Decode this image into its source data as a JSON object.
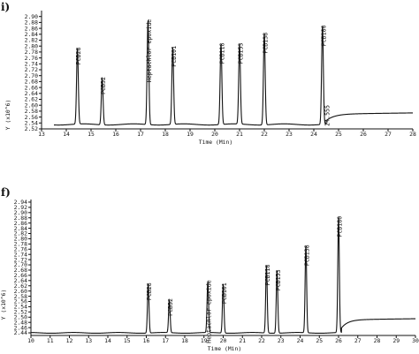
{
  "chart_data": [
    {
      "type": "line",
      "panel_label": "i)",
      "xlabel": "Time (Min)",
      "ylabel": "Y (x10^6)",
      "xlim": [
        13,
        28
      ],
      "ylim": [
        2.52,
        2.92
      ],
      "x_ticks": [
        "13",
        "14",
        "15",
        "16",
        "17",
        "18",
        "19",
        "20",
        "21",
        "22",
        "23",
        "24",
        "25",
        "26",
        "27",
        "28"
      ],
      "y_ticks": [
        "2.52",
        "2.54",
        "2.56",
        "2.58",
        "2.60",
        "2.62",
        "2.64",
        "2.66",
        "2.68",
        "2.70",
        "2.72",
        "2.74",
        "2.76",
        "2.78",
        "2.80",
        "2.82",
        "2.84",
        "2.86",
        "2.88",
        "2.90"
      ],
      "baseline": 2.535,
      "peaks": [
        {
          "name": "PCB28",
          "x": 14.45,
          "y": 2.79
        },
        {
          "name": "PCB52",
          "x": 15.45,
          "y": 2.69
        },
        {
          "name": "Heptachlor epoxide",
          "x": 17.3,
          "y": 2.885
        },
        {
          "name": "PCB101",
          "x": 18.3,
          "y": 2.795
        },
        {
          "name": "PCB118",
          "x": 20.25,
          "y": 2.805
        },
        {
          "name": "PCB153",
          "x": 21.0,
          "y": 2.805
        },
        {
          "name": "PCB138",
          "x": 22.0,
          "y": 2.84
        },
        {
          "name": "PCB180",
          "x": 24.35,
          "y": 2.865
        }
      ],
      "annotations": [
        {
          "text": "24.555",
          "x": 24.555,
          "y": 2.565
        }
      ]
    },
    {
      "type": "line",
      "panel_label": "f)",
      "xlabel": "Time (Min)",
      "ylabel": "Y (x10^6)",
      "xlim": [
        10,
        30
      ],
      "ylim": [
        2.43,
        2.95
      ],
      "x_ticks": [
        "10",
        "11",
        "12",
        "13",
        "14",
        "15",
        "16",
        "17",
        "18",
        "19",
        "20",
        "21",
        "22",
        "23",
        "24",
        "25",
        "26",
        "27",
        "28",
        "29",
        "30"
      ],
      "y_ticks": [
        "2.44",
        "2.46",
        "2.48",
        "2.50",
        "2.52",
        "2.54",
        "2.56",
        "2.58",
        "2.60",
        "2.62",
        "2.64",
        "2.66",
        "2.68",
        "2.70",
        "2.72",
        "2.74",
        "2.76",
        "2.78",
        "2.80",
        "2.82",
        "2.84",
        "2.86",
        "2.88",
        "2.90",
        "2.92",
        "2.94"
      ],
      "baseline": 2.44,
      "peaks": [
        {
          "name": "PCB28",
          "x": 16.1,
          "y": 2.625
        },
        {
          "name": "PCB52",
          "x": 17.2,
          "y": 2.565
        },
        {
          "name": "Heptachlor epoxide",
          "x": 19.2,
          "y": 2.635
        },
        {
          "name": "PCB101",
          "x": 20.0,
          "y": 2.625
        },
        {
          "name": "PCB118",
          "x": 22.25,
          "y": 2.695
        },
        {
          "name": "PCB153",
          "x": 22.8,
          "y": 2.675
        },
        {
          "name": "PCB138",
          "x": 24.3,
          "y": 2.77
        },
        {
          "name": "PCB180",
          "x": 26.0,
          "y": 2.88
        }
      ],
      "annotations": []
    }
  ]
}
